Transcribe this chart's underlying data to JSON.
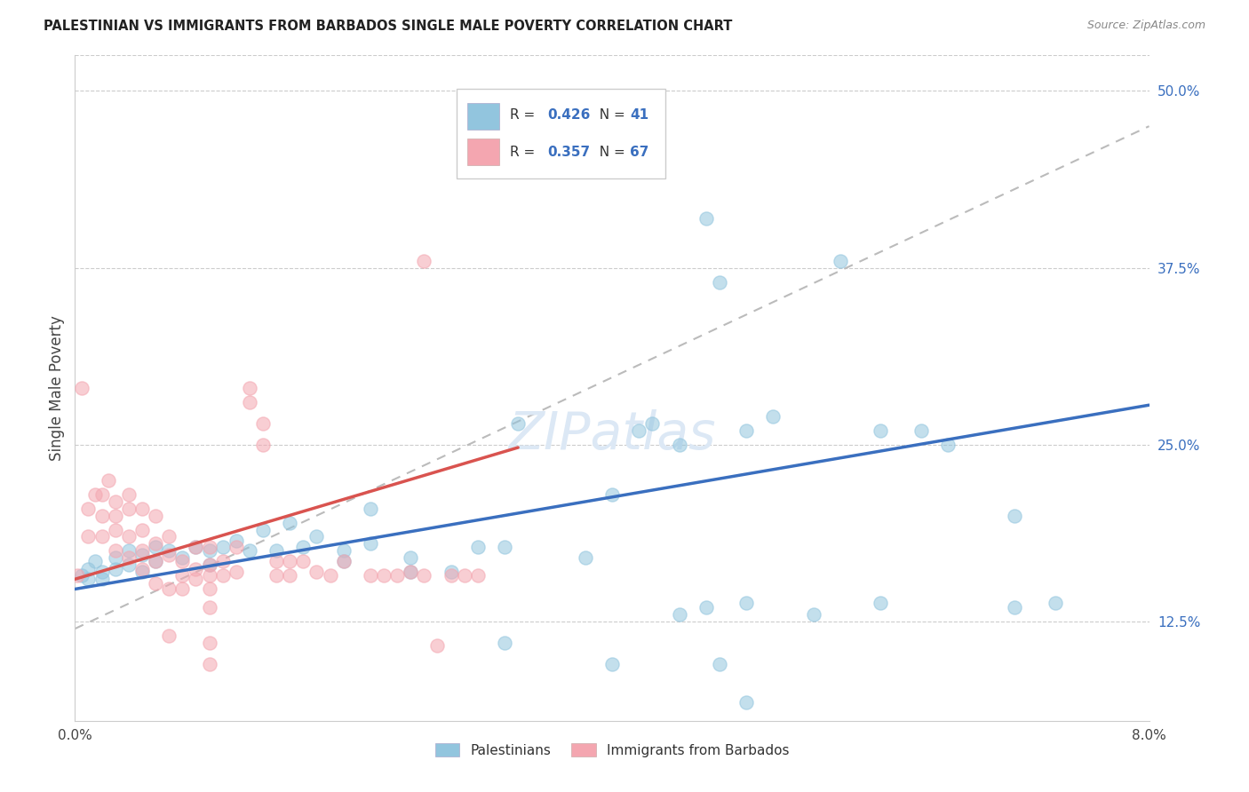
{
  "title": "PALESTINIAN VS IMMIGRANTS FROM BARBADOS SINGLE MALE POVERTY CORRELATION CHART",
  "source": "Source: ZipAtlas.com",
  "ylabel": "Single Male Poverty",
  "right_yticks_vals": [
    0.5,
    0.375,
    0.25,
    0.125
  ],
  "right_yticks_labels": [
    "50.0%",
    "37.5%",
    "25.0%",
    "12.5%"
  ],
  "blue_color": "#92c5de",
  "pink_color": "#f4a6b0",
  "blue_line_color": "#3a6fbf",
  "pink_line_color": "#d9534f",
  "dash_line_color": "#bbbbbb",
  "blue_scatter": [
    [
      0.0005,
      0.158
    ],
    [
      0.001,
      0.155
    ],
    [
      0.001,
      0.162
    ],
    [
      0.0015,
      0.168
    ],
    [
      0.002,
      0.16
    ],
    [
      0.002,
      0.155
    ],
    [
      0.003,
      0.162
    ],
    [
      0.003,
      0.17
    ],
    [
      0.004,
      0.165
    ],
    [
      0.004,
      0.175
    ],
    [
      0.005,
      0.172
    ],
    [
      0.005,
      0.16
    ],
    [
      0.006,
      0.178
    ],
    [
      0.006,
      0.168
    ],
    [
      0.007,
      0.175
    ],
    [
      0.008,
      0.17
    ],
    [
      0.009,
      0.178
    ],
    [
      0.01,
      0.165
    ],
    [
      0.01,
      0.175
    ],
    [
      0.011,
      0.178
    ],
    [
      0.012,
      0.182
    ],
    [
      0.013,
      0.175
    ],
    [
      0.014,
      0.19
    ],
    [
      0.015,
      0.175
    ],
    [
      0.016,
      0.195
    ],
    [
      0.017,
      0.178
    ],
    [
      0.018,
      0.185
    ],
    [
      0.02,
      0.175
    ],
    [
      0.02,
      0.168
    ],
    [
      0.022,
      0.205
    ],
    [
      0.022,
      0.18
    ],
    [
      0.025,
      0.17
    ],
    [
      0.025,
      0.16
    ],
    [
      0.028,
      0.16
    ],
    [
      0.03,
      0.178
    ],
    [
      0.032,
      0.178
    ],
    [
      0.033,
      0.265
    ],
    [
      0.038,
      0.17
    ],
    [
      0.04,
      0.215
    ],
    [
      0.042,
      0.26
    ],
    [
      0.043,
      0.265
    ],
    [
      0.045,
      0.25
    ],
    [
      0.047,
      0.41
    ],
    [
      0.048,
      0.365
    ],
    [
      0.05,
      0.26
    ],
    [
      0.052,
      0.27
    ],
    [
      0.057,
      0.38
    ],
    [
      0.06,
      0.26
    ],
    [
      0.063,
      0.26
    ],
    [
      0.065,
      0.25
    ],
    [
      0.04,
      0.095
    ],
    [
      0.045,
      0.13
    ],
    [
      0.05,
      0.138
    ],
    [
      0.055,
      0.13
    ],
    [
      0.06,
      0.138
    ],
    [
      0.047,
      0.135
    ],
    [
      0.07,
      0.2
    ],
    [
      0.07,
      0.135
    ],
    [
      0.073,
      0.138
    ],
    [
      0.048,
      0.095
    ],
    [
      0.05,
      0.068
    ],
    [
      0.032,
      0.11
    ]
  ],
  "pink_scatter": [
    [
      0.0002,
      0.158
    ],
    [
      0.0005,
      0.29
    ],
    [
      0.001,
      0.205
    ],
    [
      0.001,
      0.185
    ],
    [
      0.0015,
      0.215
    ],
    [
      0.002,
      0.215
    ],
    [
      0.002,
      0.2
    ],
    [
      0.002,
      0.185
    ],
    [
      0.0025,
      0.225
    ],
    [
      0.003,
      0.21
    ],
    [
      0.003,
      0.2
    ],
    [
      0.003,
      0.19
    ],
    [
      0.003,
      0.175
    ],
    [
      0.004,
      0.215
    ],
    [
      0.004,
      0.205
    ],
    [
      0.004,
      0.185
    ],
    [
      0.004,
      0.17
    ],
    [
      0.005,
      0.205
    ],
    [
      0.005,
      0.19
    ],
    [
      0.005,
      0.175
    ],
    [
      0.005,
      0.162
    ],
    [
      0.006,
      0.2
    ],
    [
      0.006,
      0.18
    ],
    [
      0.006,
      0.168
    ],
    [
      0.006,
      0.152
    ],
    [
      0.007,
      0.185
    ],
    [
      0.007,
      0.172
    ],
    [
      0.007,
      0.148
    ],
    [
      0.007,
      0.115
    ],
    [
      0.008,
      0.168
    ],
    [
      0.008,
      0.158
    ],
    [
      0.008,
      0.148
    ],
    [
      0.009,
      0.178
    ],
    [
      0.009,
      0.162
    ],
    [
      0.009,
      0.155
    ],
    [
      0.01,
      0.178
    ],
    [
      0.01,
      0.165
    ],
    [
      0.01,
      0.158
    ],
    [
      0.01,
      0.148
    ],
    [
      0.01,
      0.135
    ],
    [
      0.01,
      0.11
    ],
    [
      0.011,
      0.168
    ],
    [
      0.011,
      0.158
    ],
    [
      0.012,
      0.178
    ],
    [
      0.012,
      0.16
    ],
    [
      0.013,
      0.29
    ],
    [
      0.013,
      0.28
    ],
    [
      0.014,
      0.265
    ],
    [
      0.014,
      0.25
    ],
    [
      0.015,
      0.168
    ],
    [
      0.015,
      0.158
    ],
    [
      0.016,
      0.168
    ],
    [
      0.016,
      0.158
    ],
    [
      0.017,
      0.168
    ],
    [
      0.018,
      0.16
    ],
    [
      0.019,
      0.158
    ],
    [
      0.02,
      0.168
    ],
    [
      0.022,
      0.158
    ],
    [
      0.023,
      0.158
    ],
    [
      0.024,
      0.158
    ],
    [
      0.025,
      0.16
    ],
    [
      0.026,
      0.38
    ],
    [
      0.026,
      0.158
    ],
    [
      0.027,
      0.108
    ],
    [
      0.028,
      0.158
    ],
    [
      0.029,
      0.158
    ],
    [
      0.03,
      0.158
    ],
    [
      0.01,
      0.095
    ]
  ],
  "xlim": [
    0.0,
    0.08
  ],
  "ylim": [
    0.055,
    0.525
  ],
  "blue_trend_x": [
    0.0,
    0.08
  ],
  "blue_trend_y": [
    0.148,
    0.278
  ],
  "pink_trend_x": [
    0.0,
    0.033
  ],
  "pink_trend_y": [
    0.155,
    0.248
  ],
  "dash_trend_x": [
    0.0,
    0.08
  ],
  "dash_trend_y": [
    0.12,
    0.475
  ],
  "xtick_positions": [
    0.0,
    0.01,
    0.02,
    0.03,
    0.04,
    0.05,
    0.06,
    0.07,
    0.08
  ],
  "xtick_labels": [
    "0.0%",
    "",
    "",
    "",
    "",
    "",
    "",
    "",
    "8.0%"
  ]
}
